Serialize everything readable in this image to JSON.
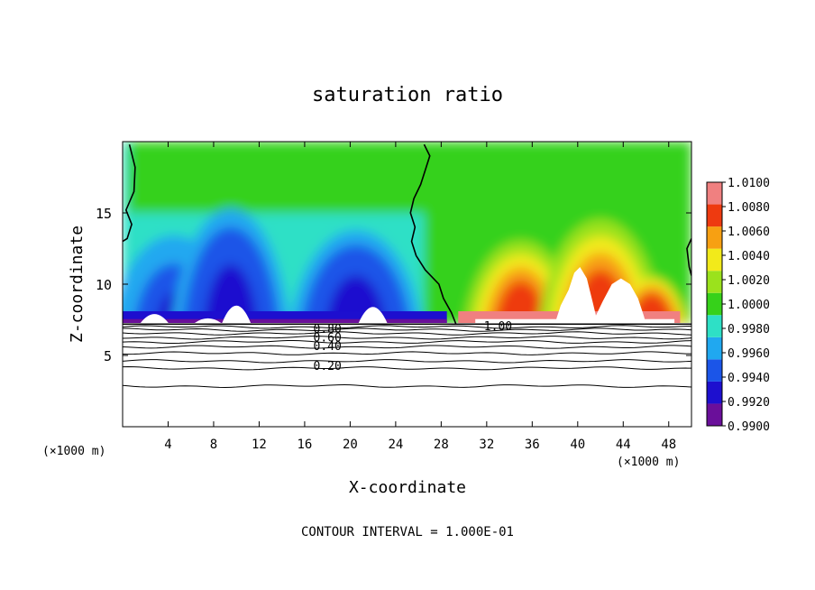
{
  "chart_data": {
    "type": "heatmap",
    "title": "saturation ratio",
    "xlabel": "X-coordinate",
    "ylabel": "Z-coordinate",
    "x_unit": "(×1000 m)",
    "x_unit_right": "(×1000 m)",
    "footer": "CONTOUR INTERVAL = 1.000E-01",
    "xlim": [
      0,
      50
    ],
    "ylim": [
      0,
      20
    ],
    "x_ticks": [
      4,
      8,
      12,
      16,
      20,
      24,
      28,
      32,
      36,
      40,
      44,
      48
    ],
    "y_ticks": [
      5,
      10,
      15
    ],
    "surface_height": 7.2,
    "colorbar": {
      "levels": [
        0.99,
        0.992,
        0.994,
        0.996,
        0.998,
        1.0,
        1.002,
        1.004,
        1.006,
        1.008,
        1.01
      ],
      "labels": [
        "0.9900",
        "0.9920",
        "0.9940",
        "0.9960",
        "0.9980",
        "1.0000",
        "1.0020",
        "1.0040",
        "1.0060",
        "1.0080",
        "1.0100"
      ],
      "colors": [
        "#6a0f9a",
        "#1d0fcf",
        "#1b55e8",
        "#20a8f0",
        "#2ee0c6",
        "#36d11a",
        "#9be21c",
        "#f2ea1a",
        "#f7a012",
        "#ee3a10",
        "#f08080"
      ]
    },
    "contour_labels": [
      {
        "text": "0.80",
        "x": 18.0,
        "y": 6.9
      },
      {
        "text": "0.60",
        "x": 18.0,
        "y": 6.3
      },
      {
        "text": "0.40",
        "x": 18.0,
        "y": 5.7
      },
      {
        "text": "0.20",
        "x": 18.0,
        "y": 4.3
      },
      {
        "text": "1.00",
        "x": 33.0,
        "y": 7.1
      }
    ],
    "unity_contour": [
      [
        [
          0.6,
          19.8
        ],
        [
          1.1,
          18.2
        ],
        [
          1.0,
          16.5
        ],
        [
          0.3,
          15.2
        ],
        [
          0.8,
          14.2
        ],
        [
          0.4,
          13.2
        ],
        [
          0.0,
          13.0
        ]
      ],
      [
        [
          26.5,
          19.8
        ],
        [
          27.0,
          19.0
        ],
        [
          26.6,
          18.0
        ],
        [
          26.2,
          17.0
        ],
        [
          25.6,
          16.0
        ],
        [
          25.3,
          15.0
        ],
        [
          25.7,
          14.0
        ],
        [
          25.4,
          13.0
        ],
        [
          25.8,
          12.0
        ],
        [
          26.6,
          11.0
        ],
        [
          27.8,
          10.0
        ],
        [
          28.2,
          9.0
        ],
        [
          28.9,
          8.0
        ],
        [
          29.3,
          7.2
        ]
      ],
      [
        [
          50,
          13.2
        ],
        [
          49.6,
          12.5
        ],
        [
          49.8,
          11.2
        ],
        [
          50,
          10.6
        ]
      ]
    ],
    "dry_pockets": [
      [
        [
          38.0,
          7.25
        ],
        [
          38.5,
          8.5
        ],
        [
          39.2,
          9.6
        ],
        [
          39.7,
          10.8
        ],
        [
          40.2,
          11.2
        ],
        [
          40.8,
          10.4
        ],
        [
          41.3,
          8.8
        ],
        [
          41.6,
          7.8
        ],
        [
          42.2,
          8.8
        ],
        [
          43.0,
          10.0
        ],
        [
          43.8,
          10.4
        ],
        [
          44.6,
          10.0
        ],
        [
          45.3,
          9.0
        ],
        [
          45.8,
          7.8
        ],
        [
          46.0,
          7.25
        ]
      ]
    ],
    "low_contours": [
      {
        "level": 0.95,
        "z": 7.0
      },
      {
        "level": 0.9,
        "z": 6.8
      },
      {
        "level": 0.8,
        "z": 6.55
      },
      {
        "level": 0.7,
        "z": 6.25
      },
      {
        "level": 0.6,
        "z": 5.95
      },
      {
        "level": 0.5,
        "z": 5.6
      },
      {
        "level": 0.4,
        "z": 5.15
      },
      {
        "level": 0.3,
        "z": 4.6
      },
      {
        "level": 0.2,
        "z": 4.1
      },
      {
        "level": 0.1,
        "z": 2.85
      }
    ]
  }
}
